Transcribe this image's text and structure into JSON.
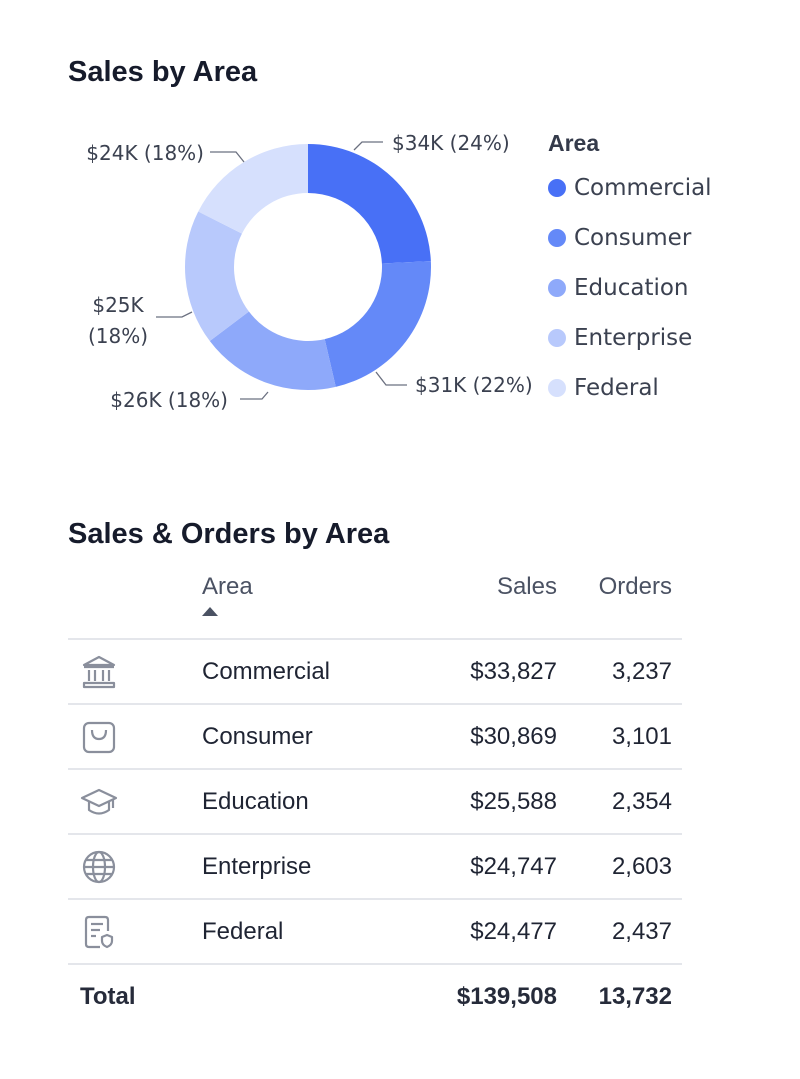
{
  "chart_data": {
    "type": "pie",
    "title": "Sales by Area",
    "legend_title": "Area",
    "legend_position": "right",
    "categories": [
      "Commercial",
      "Consumer",
      "Education",
      "Enterprise",
      "Federal"
    ],
    "values": [
      33827,
      30869,
      25588,
      24747,
      24477
    ],
    "labels": [
      "$34K (24%)",
      "$31K (22%)",
      "$26K (18%)",
      "$25K (18%)",
      "$24K (18%)"
    ],
    "colors": [
      "#4870f6",
      "#6489f8",
      "#8ea9fa",
      "#b8c9fc",
      "#d6e0fd"
    ]
  },
  "table": {
    "title": "Sales & Orders by Area",
    "headers": {
      "area": "Area",
      "sales": "Sales",
      "orders": "Orders"
    },
    "rows": [
      {
        "icon": "bank-icon",
        "area": "Commercial",
        "sales": "$33,827",
        "orders": "3,237"
      },
      {
        "icon": "shopping-bag-icon",
        "area": "Consumer",
        "sales": "$30,869",
        "orders": "3,101"
      },
      {
        "icon": "graduation-cap-icon",
        "area": "Education",
        "sales": "$25,588",
        "orders": "2,354"
      },
      {
        "icon": "globe-icon",
        "area": "Enterprise",
        "sales": "$24,747",
        "orders": "2,603"
      },
      {
        "icon": "document-shield-icon",
        "area": "Federal",
        "sales": "$24,477",
        "orders": "2,437"
      }
    ],
    "total": {
      "label": "Total",
      "sales": "$139,508",
      "orders": "13,732"
    }
  }
}
